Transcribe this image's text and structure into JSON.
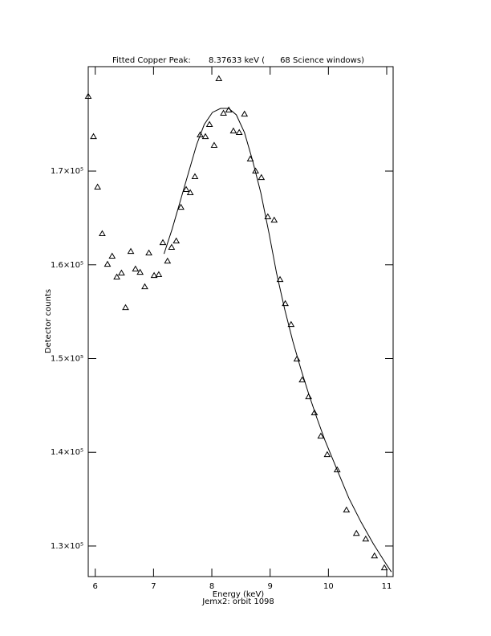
{
  "chart_data": {
    "type": "scatter",
    "title": "Fitted Copper Peak:       8.37633 keV (      68 Science windows)",
    "x_label": "Energy (keV)",
    "subtitle": "Jemx2: orbit 1098",
    "y_label": "Detector counts",
    "xlim": [
      5.88,
      11.11
    ],
    "ylim": [
      126740,
      181140
    ],
    "xticks": [
      6,
      7,
      8,
      9,
      10,
      11
    ],
    "yticks": [
      {
        "value": 130000,
        "label": "1.3×10⁵"
      },
      {
        "value": 140000,
        "label": "1.4×10⁵"
      },
      {
        "value": 150000,
        "label": "1.5×10⁵"
      },
      {
        "value": 160000,
        "label": "1.6×10⁵"
      },
      {
        "value": 170000,
        "label": "1.7×10⁵"
      }
    ],
    "grid": false,
    "series": [
      {
        "type": "scatter",
        "color": "#000000",
        "x": [
          5.88,
          5.97,
          6.04,
          6.12,
          6.21,
          6.29,
          6.37,
          6.45,
          6.52,
          6.61,
          6.69,
          6.77,
          6.85,
          6.92,
          7.01,
          7.09,
          7.16,
          7.24,
          7.31,
          7.39,
          7.47,
          7.56,
          7.63,
          7.71,
          7.8,
          7.89,
          7.96,
          8.04,
          8.12,
          8.2,
          8.29,
          8.37,
          8.47,
          8.56,
          8.66,
          8.75,
          8.85,
          8.96,
          9.07,
          9.17,
          9.26,
          9.36,
          9.46,
          9.55,
          9.66,
          9.76,
          9.87,
          9.98,
          10.15,
          10.31,
          10.48,
          10.64,
          10.79,
          10.96
        ],
        "values": [
          177970,
          173680,
          168290,
          163320,
          160060,
          160920,
          158690,
          159120,
          155430,
          161430,
          159550,
          159200,
          157660,
          161260,
          158860,
          158950,
          162370,
          160400,
          161860,
          162540,
          166140,
          168030,
          167690,
          169400,
          173860,
          173680,
          174970,
          172740,
          179850,
          176170,
          176510,
          174280,
          174110,
          176080,
          171290,
          170000,
          169310,
          165120,
          164770,
          158430,
          155860,
          153630,
          149950,
          147720,
          145920,
          144210,
          141720,
          139750,
          138120,
          133840,
          131350,
          130750,
          128950,
          127670
        ]
      },
      {
        "type": "line",
        "color": "#000000",
        "x": [
          7.18,
          7.32,
          7.46,
          7.6,
          7.74,
          7.87,
          8.01,
          8.15,
          8.29,
          8.42,
          8.56,
          8.7,
          8.84,
          8.98,
          9.11,
          9.25,
          9.39,
          9.53,
          9.66,
          9.8,
          9.94,
          10.15,
          10.35,
          10.56,
          10.77,
          10.97,
          11.08
        ],
        "values": [
          161170,
          163830,
          166830,
          169830,
          172830,
          174970,
          176260,
          176680,
          176680,
          176000,
          174110,
          171110,
          167690,
          163400,
          159120,
          155260,
          151830,
          148830,
          146260,
          143690,
          141290,
          138120,
          135120,
          132550,
          130240,
          128270,
          127240
        ]
      }
    ]
  }
}
